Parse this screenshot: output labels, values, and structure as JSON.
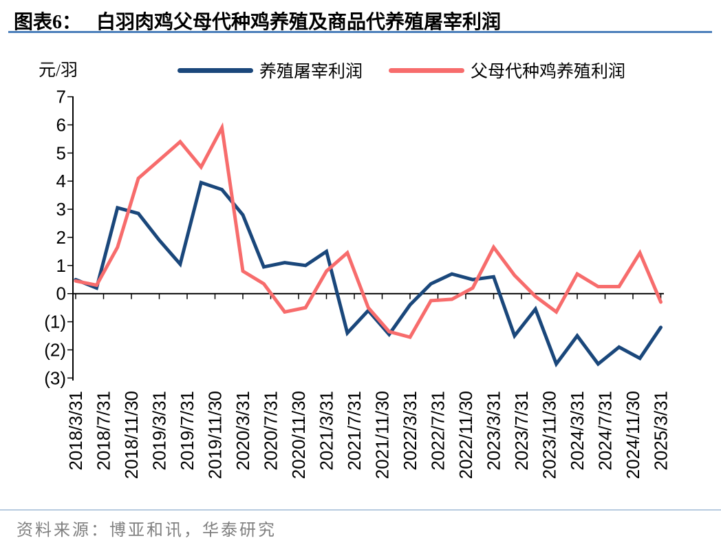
{
  "header": {
    "figure_label": "图表6：",
    "title": "白羽肉鸡父母代种鸡养殖及商品代养殖屠宰利润"
  },
  "footer": {
    "source": "资料来源：博亚和讯，华泰研究"
  },
  "colors": {
    "title_underline": "#4A7EBA",
    "source_divider": "#B7CADF",
    "axis": "#000000",
    "source_text": "#808080"
  },
  "chart_data": {
    "type": "line",
    "unit_label": "元/羽",
    "title": "白羽肉鸡父母代种鸡养殖及商品代养殖屠宰利润",
    "ylim": [
      -3,
      7
    ],
    "y_ticks": [
      7,
      6,
      5,
      4,
      3,
      2,
      1,
      0,
      -1,
      -2,
      -3
    ],
    "negative_format": "parentheses",
    "grid": false,
    "legend_position": "top",
    "x_tick_labels": [
      "2018/3/31",
      "2018/7/31",
      "2018/11/30",
      "2019/3/31",
      "2019/7/31",
      "2019/11/30",
      "2020/3/31",
      "2020/7/31",
      "2020/11/30",
      "2021/3/31",
      "2021/7/31",
      "2021/11/30",
      "2022/3/31",
      "2022/7/31",
      "2022/11/30",
      "2023/3/31",
      "2023/7/31",
      "2023/11/30",
      "2024/3/31",
      "2024/7/31",
      "2024/11/30",
      "2025/3/31"
    ],
    "x": [
      "2018/3/31",
      "2018/6/30",
      "2018/9/30",
      "2018/12/31",
      "2019/3/31",
      "2019/6/30",
      "2019/9/30",
      "2019/12/31",
      "2020/3/31",
      "2020/6/30",
      "2020/9/30",
      "2020/12/31",
      "2021/3/31",
      "2021/6/30",
      "2021/9/30",
      "2021/12/31",
      "2022/3/31",
      "2022/6/30",
      "2022/9/30",
      "2022/12/31",
      "2023/3/31",
      "2023/6/30",
      "2023/9/30",
      "2023/12/31",
      "2024/3/31",
      "2024/6/30",
      "2024/9/30",
      "2024/12/31",
      "2025/3/31"
    ],
    "series": [
      {
        "name": "养殖屠宰利润",
        "color": "#1A477B",
        "values": [
          0.5,
          0.2,
          3.05,
          2.85,
          1.9,
          1.05,
          3.95,
          3.7,
          2.8,
          0.95,
          1.1,
          1.0,
          1.5,
          -1.4,
          -0.6,
          -1.45,
          -0.4,
          0.35,
          0.7,
          0.5,
          0.6,
          -1.5,
          -0.55,
          -2.5,
          -1.5,
          -2.5,
          -1.9,
          -2.3,
          -1.2
        ]
      },
      {
        "name": "父母代种鸡养殖利润",
        "color": "#F76C6C",
        "values": [
          0.45,
          0.3,
          1.65,
          4.1,
          4.75,
          5.4,
          4.5,
          5.9,
          0.8,
          0.35,
          -0.65,
          -0.5,
          0.8,
          1.45,
          -0.5,
          -1.35,
          -1.55,
          -0.25,
          -0.2,
          0.2,
          1.65,
          0.65,
          -0.1,
          -0.65,
          0.7,
          0.25,
          0.25,
          1.45,
          -0.3
        ]
      }
    ]
  }
}
